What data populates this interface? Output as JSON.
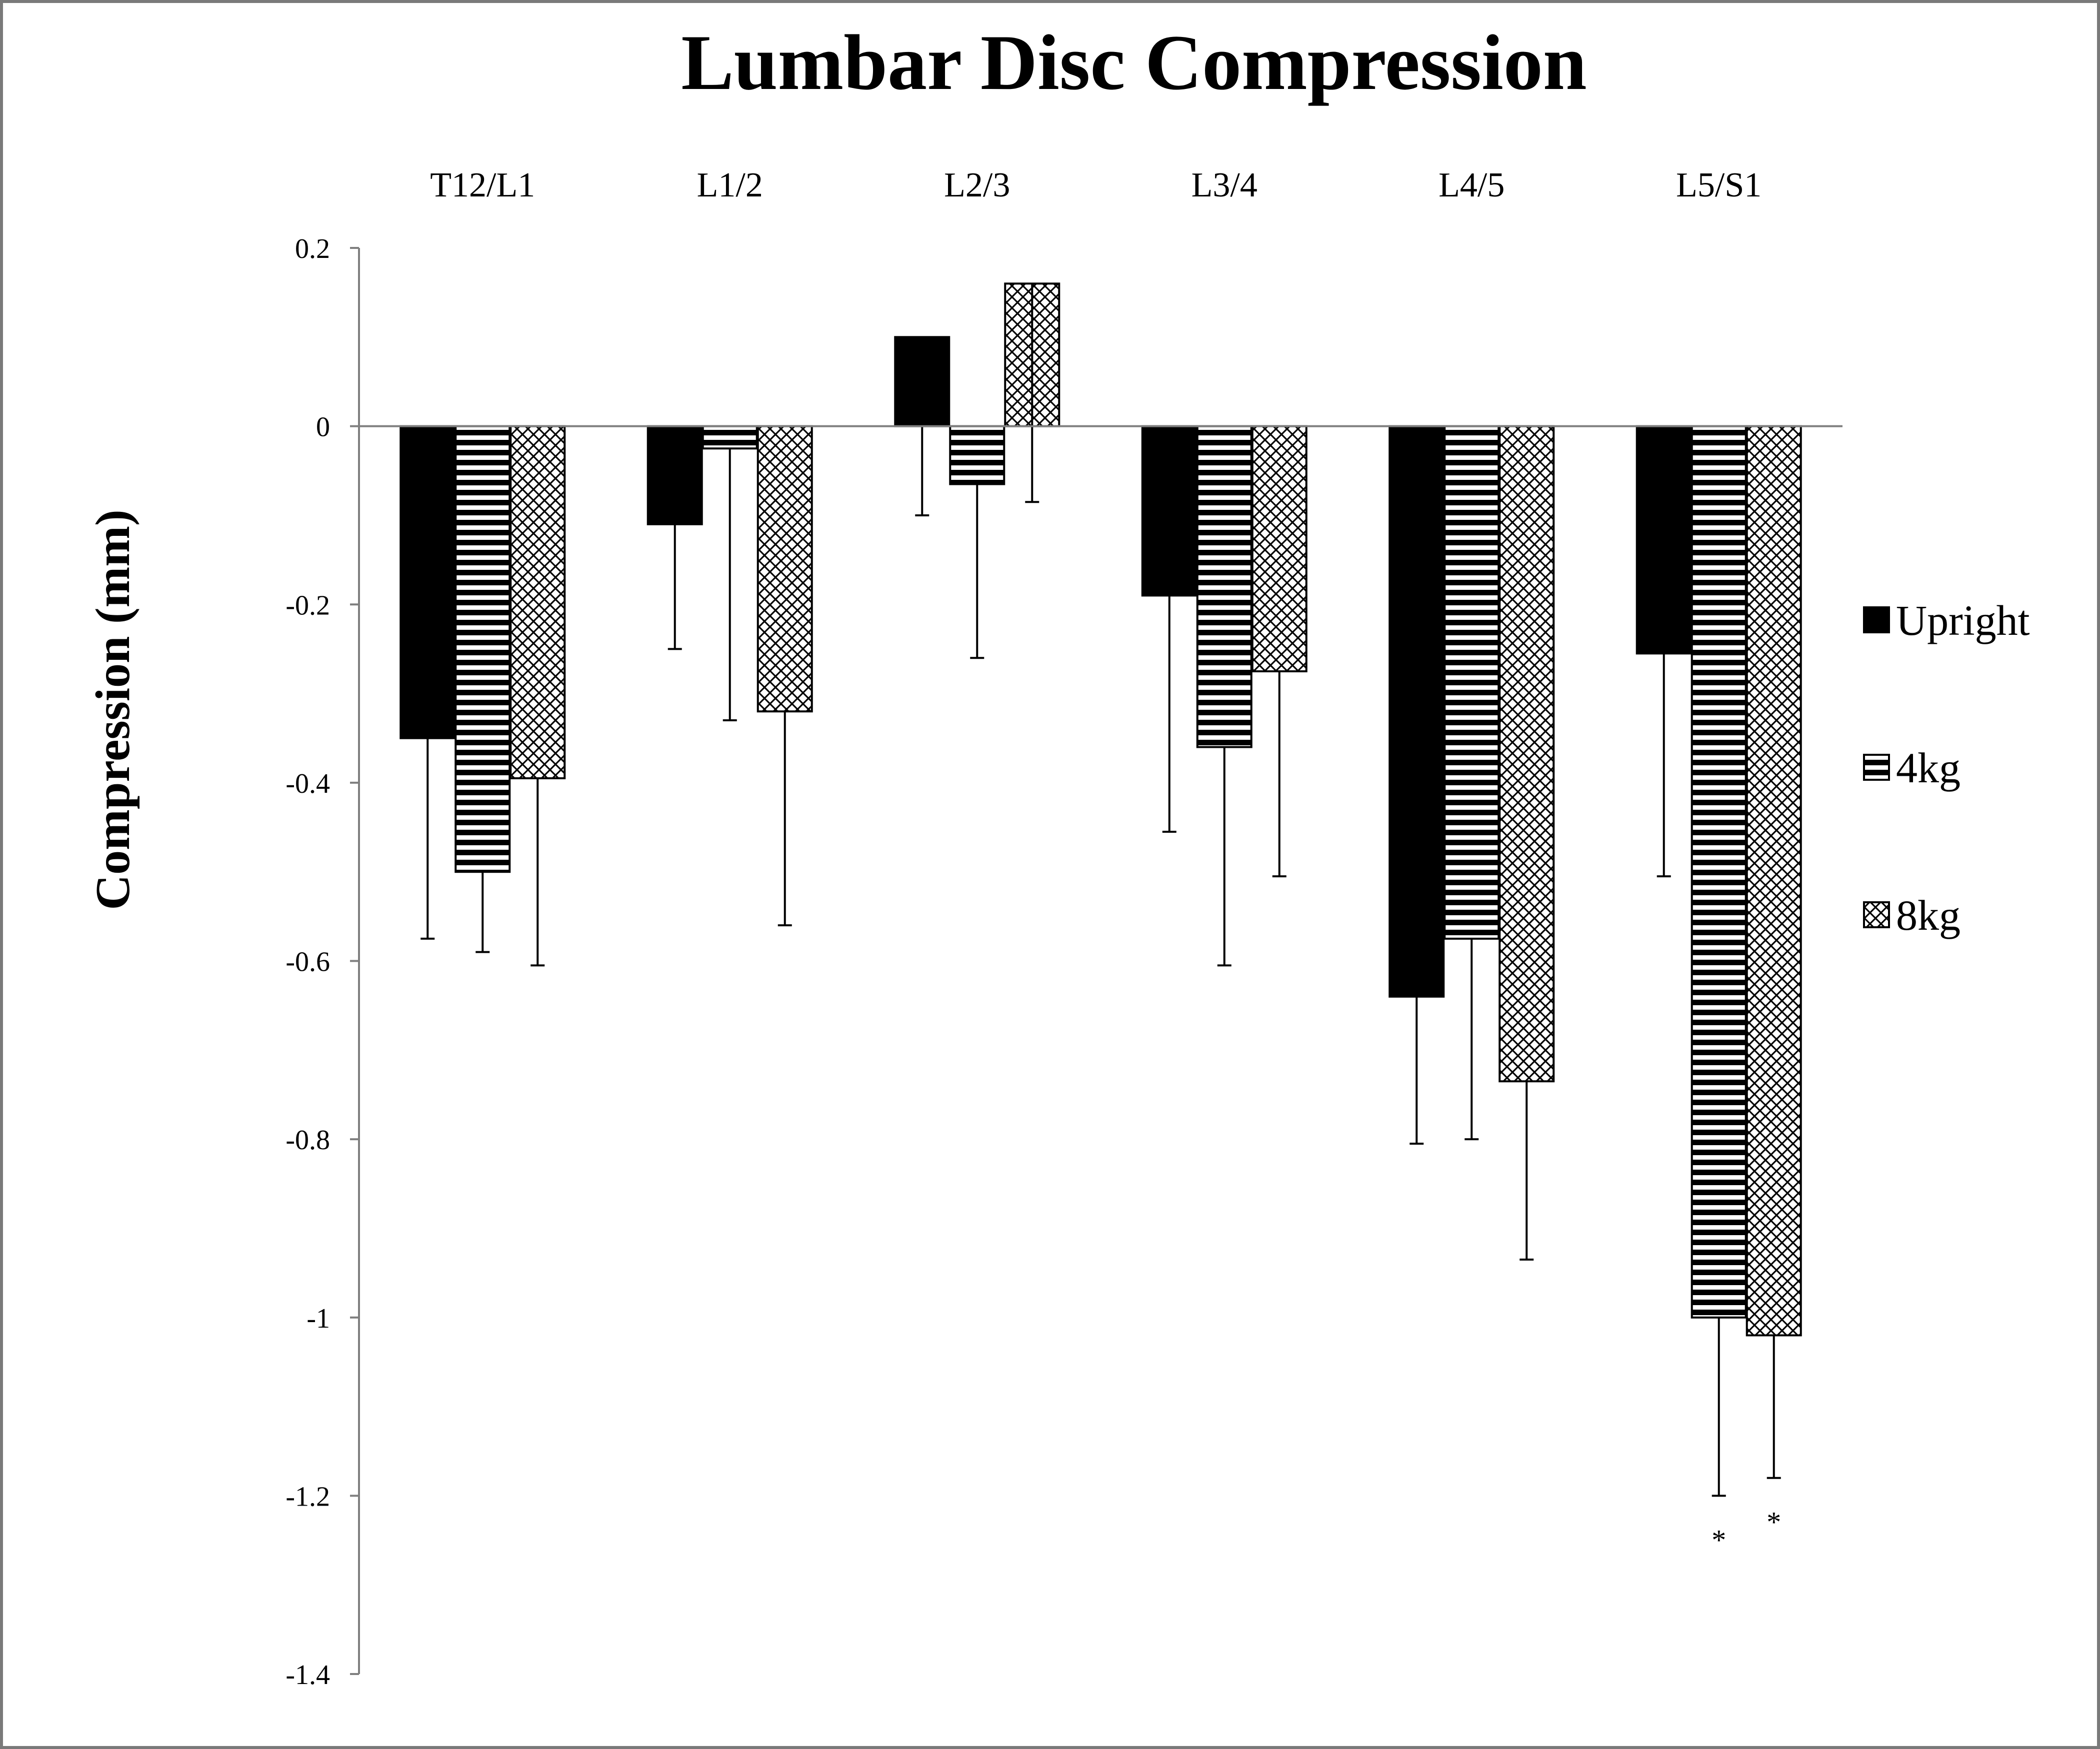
{
  "chart_data": {
    "type": "bar",
    "title": "Lumbar Disc Compression",
    "xlabel": "",
    "ylabel": "Compression (mm)",
    "ylim": [
      -1.4,
      0.2
    ],
    "yticks": [
      0.2,
      0,
      -0.2,
      -0.4,
      -0.6,
      -0.8,
      -1,
      -1.2,
      -1.4
    ],
    "ytick_labels": [
      "0.2",
      "0",
      "-0.2",
      "-0.4",
      "-0.6",
      "-0.8",
      "-1",
      "-1.2",
      "-1.4"
    ],
    "categories": [
      "T12/L1",
      "L1/2",
      "L2/3",
      "L3/4",
      "L4/5",
      "L5/S1"
    ],
    "category_labels_position": "top",
    "series": [
      {
        "name": "Upright",
        "pattern": "solid",
        "values": [
          -0.35,
          -0.11,
          0.1,
          -0.19,
          -0.64,
          -0.255
        ],
        "error_lower": [
          -0.575,
          -0.25,
          -0.1,
          -0.455,
          -0.805,
          -0.505
        ]
      },
      {
        "name": "4kg",
        "pattern": "horizontal-stripes",
        "values": [
          -0.5,
          -0.025,
          -0.065,
          -0.36,
          -0.575,
          -1.0
        ],
        "error_lower": [
          -0.59,
          -0.33,
          -0.26,
          -0.605,
          -0.8,
          -1.2
        ]
      },
      {
        "name": "8kg",
        "pattern": "crosshatch",
        "values": [
          -0.395,
          -0.32,
          0.16,
          -0.275,
          -0.735,
          -1.02
        ],
        "error_lower": [
          -0.605,
          -0.56,
          -0.085,
          -0.505,
          -0.935,
          -1.18
        ]
      }
    ],
    "annotations": [
      {
        "category": "L5/S1",
        "series": "4kg",
        "text": "*"
      },
      {
        "category": "L5/S1",
        "series": "8kg",
        "text": "*"
      }
    ],
    "grid": false,
    "legend_position": "right",
    "colors": {
      "bar_fill": "#000000",
      "bar_edge": "#000000",
      "background": "#ffffff",
      "axis": "#7f7f7f",
      "frame": "#7a7a7a"
    }
  }
}
